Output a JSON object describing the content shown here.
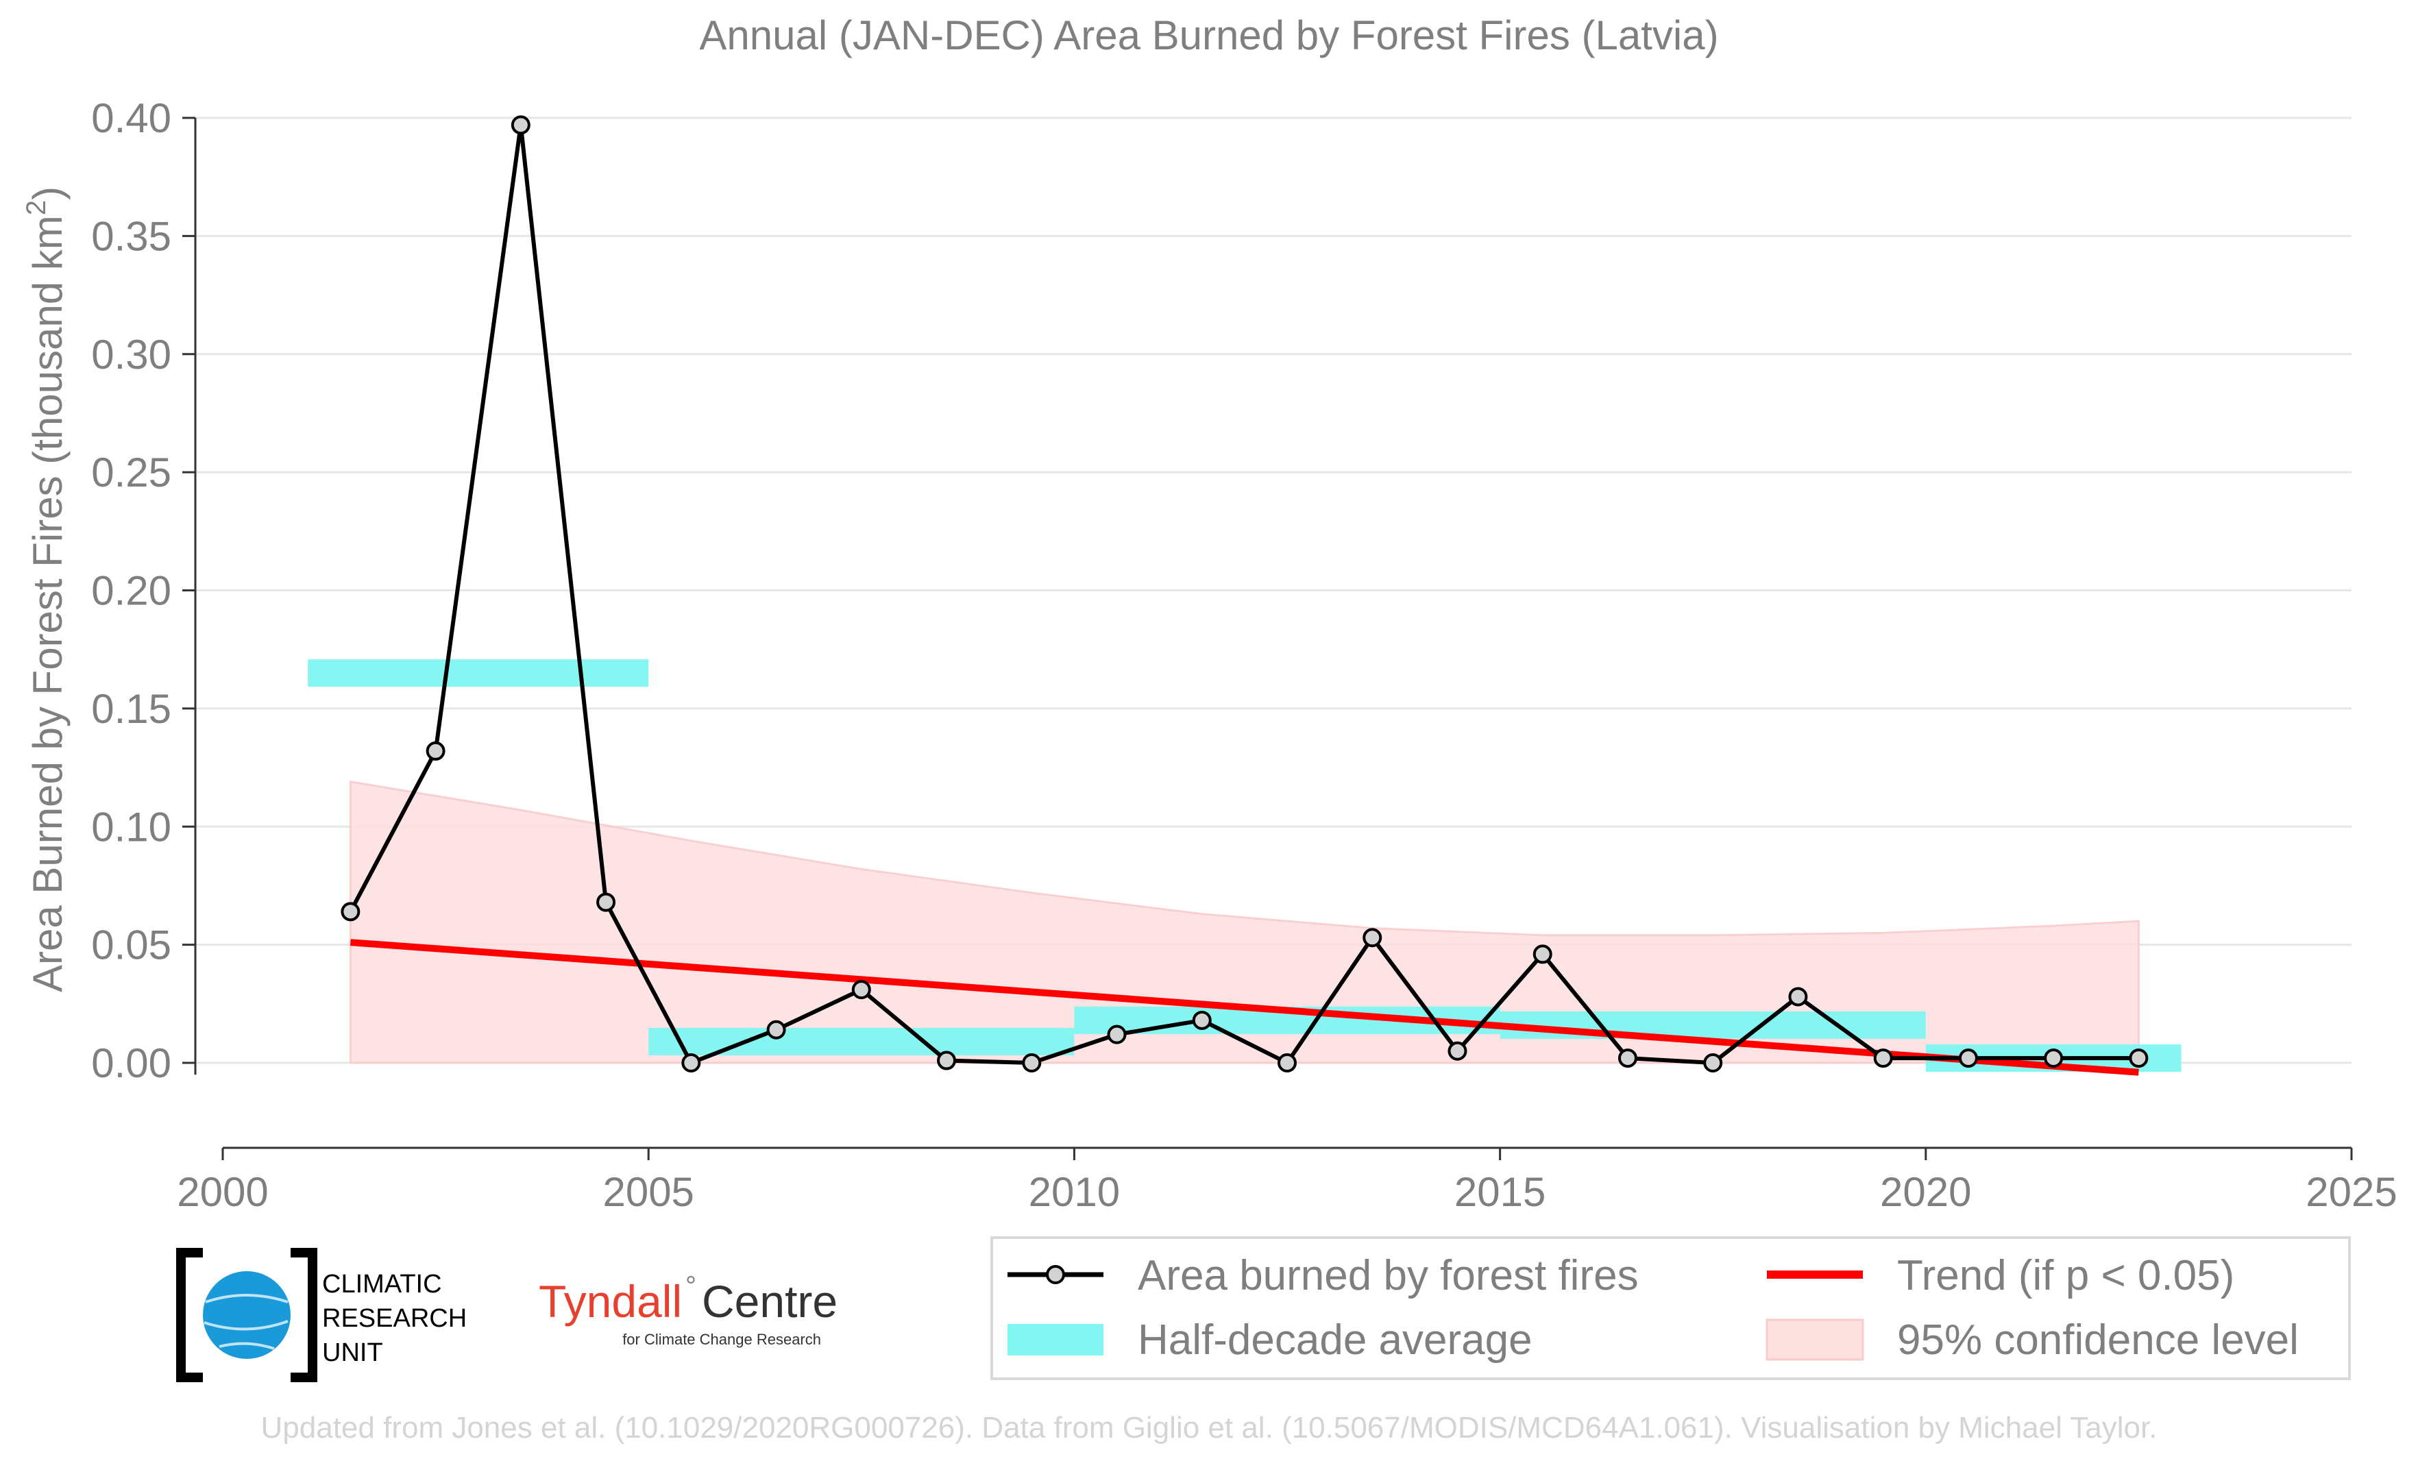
{
  "chart_data": {
    "type": "line",
    "title": "Annual (JAN-DEC) Area Burned by Forest Fires (Latvia)",
    "ylabel_main": "Area Burned by Forest Fires (thousand km",
    "ylabel_sup": "2",
    "ylabel_end": ")",
    "xlabel": "",
    "xlim": [
      2000,
      2025
    ],
    "ylim": [
      -0.035,
      0.41
    ],
    "x_ticks": [
      "2000",
      "2005",
      "2010",
      "2015",
      "2020",
      "2025"
    ],
    "y_ticks": [
      "0.00",
      "0.05",
      "0.10",
      "0.15",
      "0.20",
      "0.25",
      "0.30",
      "0.35",
      "0.40"
    ],
    "grid": true,
    "legend_position": "bottom-right",
    "series": [
      {
        "name": "Area burned by forest fires",
        "color": "#000000",
        "x": [
          2001.5,
          2002.5,
          2003.5,
          2004.5,
          2005.5,
          2006.5,
          2007.5,
          2008.5,
          2009.5,
          2010.5,
          2011.5,
          2012.5,
          2013.5,
          2014.5,
          2015.5,
          2016.5,
          2017.5,
          2018.5,
          2019.5,
          2020.5,
          2021.5,
          2022.5
        ],
        "y": [
          0.064,
          0.132,
          0.397,
          0.068,
          0.0,
          0.014,
          0.031,
          0.001,
          0.0,
          0.012,
          0.018,
          0.0,
          0.053,
          0.005,
          0.046,
          0.002,
          0.0,
          0.028,
          0.002,
          0.002,
          0.002,
          0.002
        ]
      },
      {
        "name": "Half-decade average",
        "color": "#80f5f2",
        "segments": [
          {
            "x0": 2001,
            "x1": 2005,
            "y": 0.165
          },
          {
            "x0": 2005,
            "x1": 2010,
            "y": 0.009
          },
          {
            "x0": 2010,
            "x1": 2015,
            "y": 0.018
          },
          {
            "x0": 2015,
            "x1": 2020,
            "y": 0.016
          },
          {
            "x0": 2020,
            "x1": 2023,
            "y": 0.002
          }
        ]
      },
      {
        "name": "Trend (if p < 0.05)",
        "color": "#ff0000",
        "x": [
          2001.5,
          2022.5
        ],
        "y": [
          0.051,
          -0.004
        ]
      },
      {
        "name": "95% confidence level",
        "color": "#fde0e0",
        "x": [
          2001.5,
          2003.5,
          2005.5,
          2007.5,
          2009.5,
          2011.5,
          2013.5,
          2015.5,
          2017.5,
          2019.5,
          2021.5,
          2022.5
        ],
        "upper": [
          0.119,
          0.107,
          0.094,
          0.082,
          0.072,
          0.063,
          0.057,
          0.054,
          0.054,
          0.055,
          0.058,
          0.06
        ],
        "lower": [
          0,
          0,
          0,
          0,
          0,
          0,
          0,
          0,
          0,
          0,
          0,
          0
        ]
      }
    ]
  },
  "legend": {
    "line_label": "Area burned by forest fires",
    "trend_label": "Trend (if p < 0.05)",
    "avg_label": "Half-decade average",
    "ci_label": "95% confidence level"
  },
  "logos": {
    "cru_line1": "CLIMATIC",
    "cru_line2": "RESEARCH",
    "cru_line3": "UNIT",
    "tyndall_name": "Tyndall",
    "tyndall_degree": "°",
    "tyndall_centre": "Centre",
    "tyndall_sub": "for Climate Change Research"
  },
  "footer": "Updated from Jones et al. (10.1029/2020RG000726). Data from Giglio et al. (10.5067/MODIS/MCD64A1.061). Visualisation by Michael Taylor."
}
